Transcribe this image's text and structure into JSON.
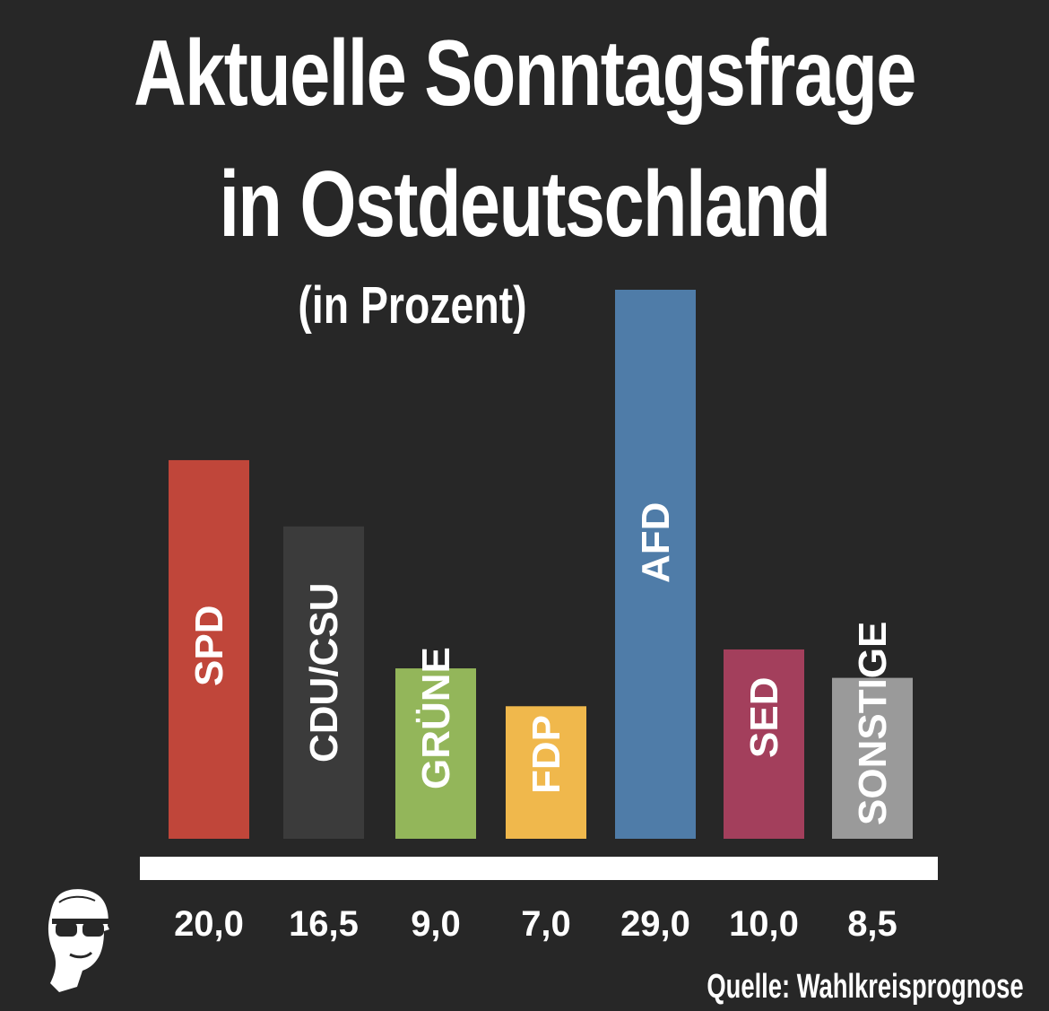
{
  "chart_data": {
    "type": "bar",
    "title": "Aktuelle Sonntagsfrage",
    "title_line2": "in Ostdeutschland",
    "subtitle": "(in Prozent)",
    "categories": [
      "SPD",
      "CDU/CSU",
      "GRÜNE",
      "FDP",
      "AFD",
      "SED",
      "SONSTIGE"
    ],
    "values": [
      20.0,
      16.5,
      9.0,
      7.0,
      29.0,
      10.0,
      8.5
    ],
    "value_labels": [
      "20,0",
      "16,5",
      "9,0",
      "7,0",
      "29,0",
      "10,0",
      "8,5"
    ],
    "colors": [
      "#c0463a",
      "#3b3b3b",
      "#93b65a",
      "#f0b84c",
      "#4f7ca8",
      "#a33f5c",
      "#9a9a9a"
    ],
    "ylim": [
      0,
      29.0
    ],
    "source": "Quelle: Wahlkreisprognose",
    "xlabel": "",
    "ylabel": ""
  },
  "background_color": "#272727",
  "logo_icon": "face-with-sunglasses-icon"
}
